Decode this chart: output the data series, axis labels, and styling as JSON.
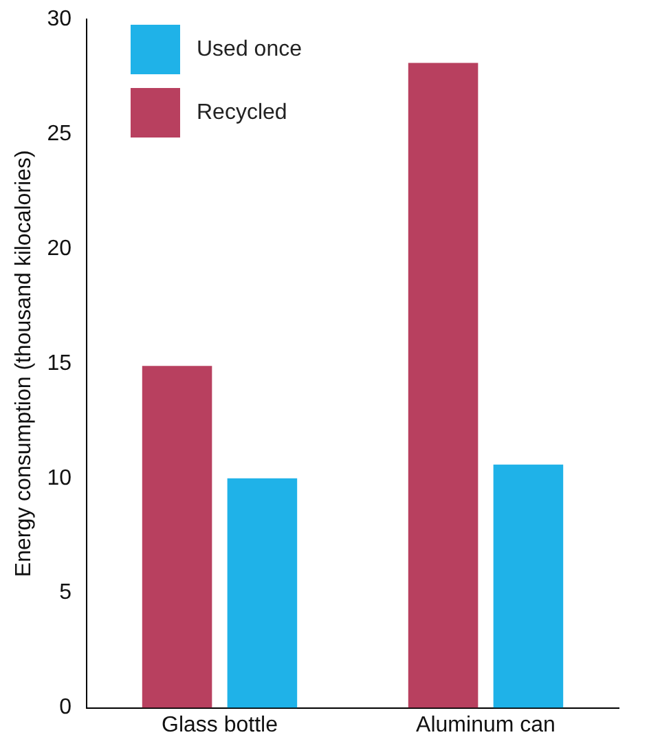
{
  "chart_data": {
    "type": "bar",
    "ylabel": "Energy consumption (thousand kilocalories)",
    "categories": [
      "Glass bottle",
      "Aluminum can"
    ],
    "series": [
      {
        "name": "Recycled",
        "color": "#b8405f",
        "values": [
          14.9,
          28.1
        ]
      },
      {
        "name": "Used once",
        "color": "#1fb2e8",
        "values": [
          10,
          10.6
        ]
      }
    ],
    "ylim": [
      0,
      30
    ],
    "yticks": [
      0,
      5,
      10,
      15,
      20,
      25,
      30
    ],
    "grid": false,
    "legend": "top left"
  }
}
